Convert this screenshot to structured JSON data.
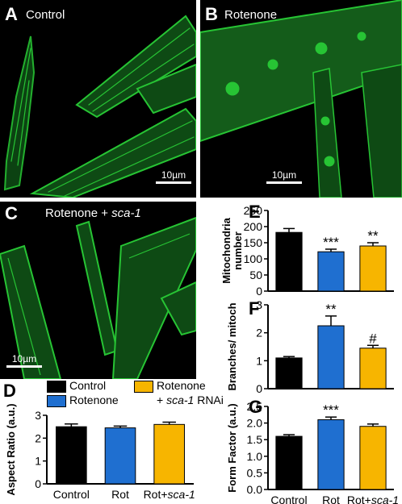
{
  "panels": {
    "A": {
      "letter": "A",
      "title": "Control",
      "scale": "10µm"
    },
    "B": {
      "letter": "B",
      "title": "Rotenone",
      "scale": "10µm"
    },
    "C": {
      "letter": "C",
      "title_main": "Rotenone + ",
      "title_italic": "sca-1",
      "scale": "10µm"
    }
  },
  "legend": {
    "items": [
      {
        "label": "Control",
        "color": "#000000"
      },
      {
        "label": "Rotenone",
        "color": "#1f6fd0"
      },
      {
        "label": "Rotenone",
        "sub_prefix": "+ ",
        "sub_italic": "sca-1",
        "sub_suffix": " RNAi",
        "color": "#f7b500"
      }
    ]
  },
  "colors": {
    "control": "#000000",
    "rotenone": "#1f6fd0",
    "sca1": "#f7b500",
    "mito": "#27c434"
  },
  "chart_data": [
    {
      "letter": "D",
      "type": "bar",
      "categories": [
        "Control",
        "Rot",
        "Rot+sca-1"
      ],
      "values": [
        2.5,
        2.45,
        2.6
      ],
      "errors": [
        0.12,
        0.08,
        0.1
      ],
      "ylabel": "Aspect Ratio (a.u.)",
      "ylim": [
        0,
        3
      ],
      "yticks": [
        "0",
        "1",
        "2",
        "3"
      ],
      "significance": [
        "",
        "",
        ""
      ]
    },
    {
      "letter": "E",
      "type": "bar",
      "categories": [
        "Control",
        "Rot",
        "Rot+sca-1"
      ],
      "values": [
        182,
        122,
        140
      ],
      "errors": [
        12,
        8,
        10
      ],
      "ylabel_lines": [
        "Mitochondria",
        "number"
      ],
      "ylim": [
        0,
        250
      ],
      "yticks": [
        "0",
        "50",
        "100",
        "150",
        "200",
        "250"
      ],
      "significance": [
        "",
        "***",
        "**"
      ]
    },
    {
      "letter": "F",
      "type": "bar",
      "categories": [
        "Control",
        "Rot",
        "Rot+sca-1"
      ],
      "values": [
        1.1,
        2.25,
        1.45
      ],
      "errors": [
        0.05,
        0.35,
        0.1
      ],
      "ylabel": "Branches/ mitoch",
      "ylim": [
        0,
        3
      ],
      "yticks": [
        "0",
        "1",
        "2",
        "3"
      ],
      "significance": [
        "",
        "**",
        "#"
      ]
    },
    {
      "letter": "G",
      "type": "bar",
      "categories": [
        "Control",
        "Rot",
        "Rot+sca-1"
      ],
      "values": [
        1.6,
        2.1,
        1.9
      ],
      "errors": [
        0.05,
        0.08,
        0.07
      ],
      "ylabel": "Form Factor (a.u.)",
      "ylim": [
        0,
        2.5
      ],
      "yticks": [
        "0.0",
        "0.5",
        "1.0",
        "1.5",
        "2.0",
        "2.5"
      ],
      "significance": [
        "",
        "***",
        ""
      ]
    }
  ]
}
